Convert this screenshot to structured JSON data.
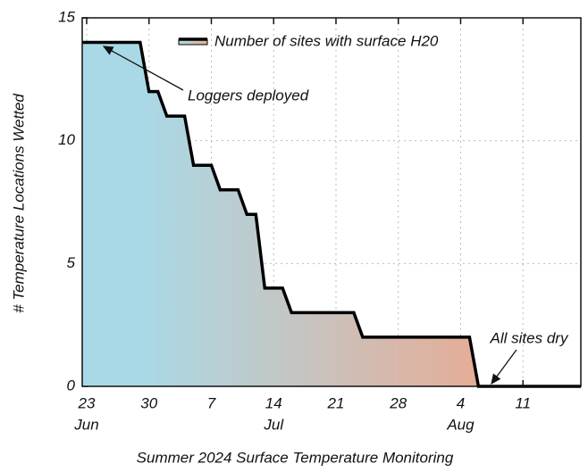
{
  "chart_data": {
    "type": "area-step",
    "xlabel": "Summer 2024 Surface Temperature Monitoring",
    "ylabel": "# Temperature Locations Wetted",
    "legend": "Number of sites with surface H20",
    "line_color": "#000000",
    "fill_colors": [
      "#a9d9e6",
      "#e8ab94"
    ],
    "x": [
      "2024-06-22T12:00",
      "2024-06-29",
      "2024-06-30",
      "2024-07-01",
      "2024-07-02",
      "2024-07-04",
      "2024-07-05",
      "2024-07-07",
      "2024-07-08",
      "2024-07-10",
      "2024-07-11",
      "2024-07-12",
      "2024-07-13",
      "2024-07-15",
      "2024-07-16",
      "2024-07-23",
      "2024-07-24",
      "2024-08-05",
      "2024-08-06",
      "2024-08-17T12:00"
    ],
    "values": [
      14,
      14,
      12,
      12,
      11,
      11,
      9,
      9,
      8,
      8,
      7,
      7,
      4,
      4,
      3,
      3,
      2,
      2,
      0,
      0
    ],
    "xlim": [
      "2024-06-22T12:00",
      "2024-08-17T12:00"
    ],
    "xticks": [
      {
        "value": "2024-06-23",
        "label": "23"
      },
      {
        "value": "2024-06-30",
        "label": "30"
      },
      {
        "value": "2024-07-07",
        "label": "7"
      },
      {
        "value": "2024-07-14",
        "label": "14"
      },
      {
        "value": "2024-07-21",
        "label": "21"
      },
      {
        "value": "2024-07-28",
        "label": "28"
      },
      {
        "value": "2024-08-04",
        "label": "4"
      },
      {
        "value": "2024-08-11",
        "label": "11"
      }
    ],
    "month_labels": [
      {
        "value": "2024-06-23",
        "label": "Jun"
      },
      {
        "value": "2024-07-14",
        "label": "Jul"
      },
      {
        "value": "2024-08-04",
        "label": "Aug"
      }
    ],
    "ylim": [
      0,
      15
    ],
    "yticks": [
      0,
      5,
      10,
      15
    ],
    "grid": true,
    "annotations": [
      "Loggers deployed",
      "All sites dry"
    ]
  }
}
